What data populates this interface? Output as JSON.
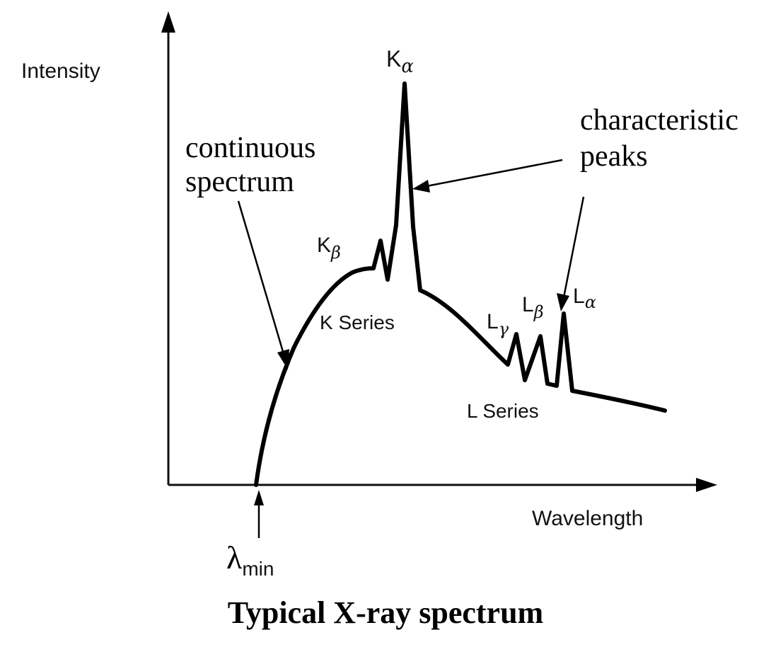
{
  "axes": {
    "y_label": "Intensity",
    "x_label": "Wavelength"
  },
  "lambda_min": {
    "symbol": "λ",
    "subscript": "min"
  },
  "labels": {
    "continuous_line1": "continuous",
    "continuous_line2": "spectrum",
    "characteristic_line1": "characteristic",
    "characteristic_line2": "peaks",
    "k_series": "K Series",
    "l_series": "L Series"
  },
  "peaks": {
    "k_alpha": {
      "letter": "K",
      "sub": "α"
    },
    "k_beta": {
      "letter": "K",
      "sub": "β"
    },
    "l_gamma": {
      "letter": "L",
      "sub": "γ"
    },
    "l_beta": {
      "letter": "L",
      "sub": "β"
    },
    "l_alpha": {
      "letter": "L",
      "sub": "α"
    }
  },
  "caption": "Typical X-ray spectrum",
  "colors": {
    "ink": "#000000",
    "background": "#ffffff"
  }
}
